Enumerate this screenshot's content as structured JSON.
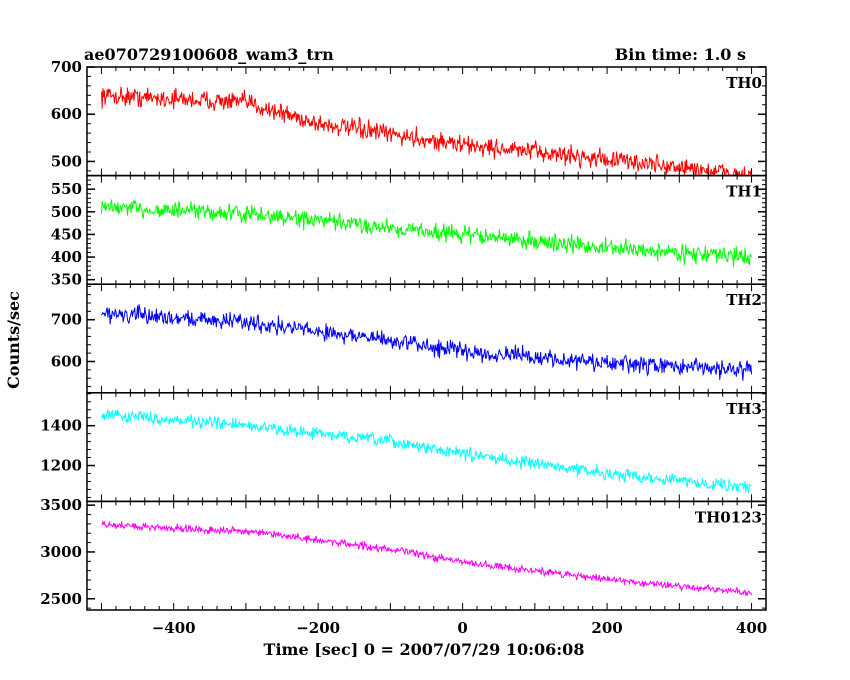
{
  "header": {
    "title": "ae070729100608_wam3_trn",
    "bin_time": "Bin time: 1.0 s"
  },
  "chart_data": {
    "type": "line",
    "title": "ae070729100608_wam3_trn",
    "subtitle": "Bin time: 1.0 s",
    "xlabel": "Time [sec] 0 = 2007/07/29 10:06:08",
    "ylabel": "Counts/sec",
    "xlim": [
      -520,
      420
    ],
    "x_ticks": [
      -400,
      -200,
      0,
      200,
      400
    ],
    "x_tick_labels": [
      "−400",
      "−200",
      "0",
      "200",
      "400"
    ],
    "grid": false,
    "x": {
      "start": -500,
      "end": 400,
      "step": 1
    },
    "panels": [
      {
        "name": "TH0",
        "color": "#ff0000",
        "ylim": [
          470,
          700
        ],
        "y_ticks": [
          500,
          600,
          700
        ],
        "trend": [
          [
            -500,
            640
          ],
          [
            -300,
            625
          ],
          [
            -200,
            580
          ],
          [
            0,
            535
          ],
          [
            200,
            505
          ],
          [
            400,
            470
          ]
        ],
        "noise_amplitude": 30
      },
      {
        "name": "TH1",
        "color": "#00ff00",
        "ylim": [
          340,
          580
        ],
        "y_ticks": [
          350,
          400,
          450,
          500,
          550
        ],
        "trend": [
          [
            -500,
            510
          ],
          [
            -300,
            495
          ],
          [
            -100,
            465
          ],
          [
            0,
            450
          ],
          [
            200,
            420
          ],
          [
            400,
            400
          ]
        ],
        "noise_amplitude": 28
      },
      {
        "name": "TH2",
        "color": "#0000ff",
        "ylim": [
          525,
          785
        ],
        "y_ticks": [
          600,
          700
        ],
        "trend": [
          [
            -500,
            715
          ],
          [
            -300,
            695
          ],
          [
            -100,
            650
          ],
          [
            0,
            625
          ],
          [
            200,
            595
          ],
          [
            400,
            580
          ]
        ],
        "noise_amplitude": 30
      },
      {
        "name": "TH3",
        "color": "#00ffff",
        "ylim": [
          1020,
          1565
        ],
        "y_ticks": [
          1200,
          1400
        ],
        "trend": [
          [
            -500,
            1460
          ],
          [
            -300,
            1400
          ],
          [
            -100,
            1320
          ],
          [
            0,
            1260
          ],
          [
            200,
            1160
          ],
          [
            400,
            1090
          ]
        ],
        "noise_amplitude": 45
      },
      {
        "name": "TH0123",
        "color": "#ff00ff",
        "ylim": [
          2380,
          3540
        ],
        "y_ticks": [
          2500,
          3000,
          3500
        ],
        "trend": [
          [
            -500,
            3290
          ],
          [
            -300,
            3220
          ],
          [
            -100,
            3030
          ],
          [
            0,
            2890
          ],
          [
            200,
            2710
          ],
          [
            400,
            2560
          ]
        ],
        "noise_amplitude": 60
      }
    ]
  }
}
